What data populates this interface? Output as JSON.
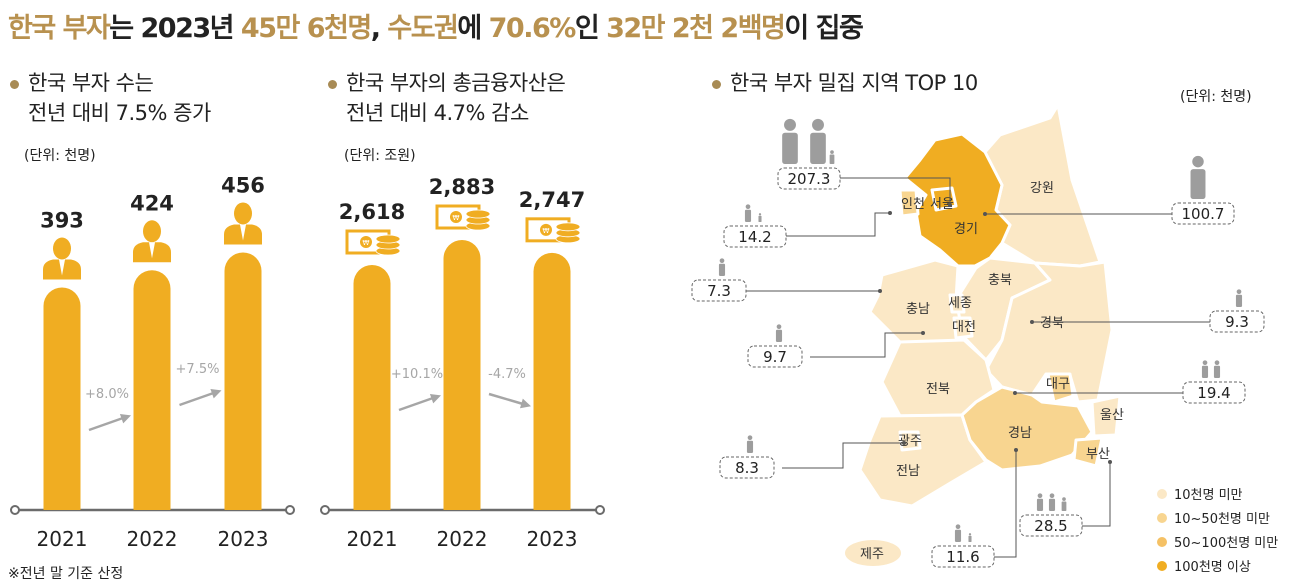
{
  "headline": {
    "parts": [
      {
        "text": "한국 부자",
        "highlight": true
      },
      {
        "text": "는 2023년 ",
        "highlight": false
      },
      {
        "text": "45만 6천명",
        "highlight": true
      },
      {
        "text": ", ",
        "highlight": false
      },
      {
        "text": "수도권",
        "highlight": true
      },
      {
        "text": "에 ",
        "highlight": false
      },
      {
        "text": "70.6%",
        "highlight": true
      },
      {
        "text": "인 ",
        "highlight": false
      },
      {
        "text": "32만 2천 2백명",
        "highlight": true
      },
      {
        "text": "이 집중",
        "highlight": false
      }
    ]
  },
  "colors": {
    "accent": "#f0ad22",
    "headline_highlight": "#b8914f",
    "arrow": "#a6a6a6",
    "axis": "#6b6b6b",
    "icon_person": "#9d9d9d"
  },
  "note": "※전년 말 기준 산정",
  "chart_data": [
    {
      "type": "bar",
      "title_line1": "한국 부자 수는",
      "title_line2": "전년 대비 7.5% 증가",
      "unit": "(단위: 천명)",
      "categories": [
        "2021",
        "2022",
        "2023"
      ],
      "values": [
        393,
        424,
        456
      ],
      "value_labels": [
        "393",
        "424",
        "456"
      ],
      "changes": [
        "+8.0%",
        "+7.5%"
      ],
      "bar_icon": "businessman-icon"
    },
    {
      "type": "bar",
      "title_line1": "한국 부자의 총금융자산은",
      "title_line2": "전년 대비 4.7% 감소",
      "unit": "(단위: 조원)",
      "categories": [
        "2021",
        "2022",
        "2023"
      ],
      "values": [
        2618,
        2883,
        2747
      ],
      "value_labels": [
        "2,618",
        "2,883",
        "2,747"
      ],
      "changes": [
        "+10.1%",
        "-4.7%"
      ],
      "bar_icon": "money-coins-icon"
    }
  ],
  "map": {
    "title": "한국 부자 밀집 지역 TOP 10",
    "unit": "(단위: 천명)",
    "regions": [
      "강원",
      "인천",
      "서울",
      "경기",
      "충북",
      "충남",
      "세종",
      "대전",
      "경북",
      "전북",
      "대구",
      "울산",
      "경남",
      "광주",
      "부산",
      "전남",
      "제주"
    ],
    "callouts": [
      {
        "region": "서울",
        "value": "207.3"
      },
      {
        "region": "인천",
        "value": "14.2"
      },
      {
        "region": "경기",
        "value": "100.7"
      },
      {
        "region": "충남",
        "value": "7.3"
      },
      {
        "region": "경북",
        "value": "9.3"
      },
      {
        "region": "대전",
        "value": "9.7"
      },
      {
        "region": "대구",
        "value": "19.4"
      },
      {
        "region": "광주",
        "value": "8.3"
      },
      {
        "region": "부산",
        "value": "28.5"
      },
      {
        "region": "경남",
        "value": "11.6"
      }
    ],
    "legend": [
      {
        "label": "10천명 미만",
        "color": "#fbe8c6"
      },
      {
        "label": "10~50천명 미만",
        "color": "#f8d590"
      },
      {
        "label": "50~100천명 미만",
        "color": "#f5c165"
      },
      {
        "label": "100천명 이상",
        "color": "#f0ad22"
      }
    ]
  }
}
